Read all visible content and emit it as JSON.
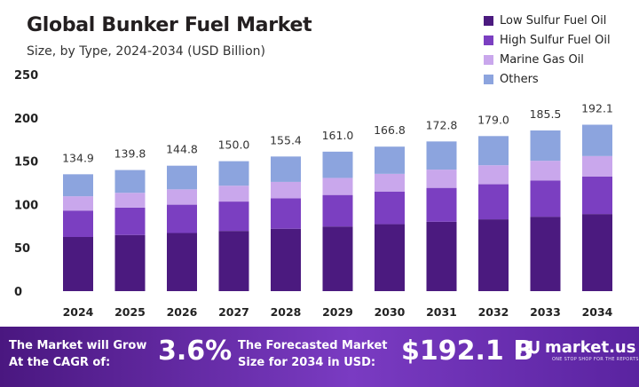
{
  "header": {
    "title": "Global Bunker Fuel Market",
    "subtitle": "Size, by Type, 2024-2034 (USD Billion)"
  },
  "chart_data": {
    "type": "bar",
    "stacked": true,
    "title": "Global Bunker Fuel Market",
    "subtitle": "Size, by Type, 2024-2034 (USD Billion)",
    "categories": [
      "2024",
      "2025",
      "2026",
      "2027",
      "2028",
      "2029",
      "2030",
      "2031",
      "2032",
      "2033",
      "2034"
    ],
    "totals": [
      "134.9",
      "139.8",
      "144.8",
      "150.0",
      "155.4",
      "161.0",
      "166.8",
      "172.8",
      "179.0",
      "185.5",
      "192.1"
    ],
    "series": [
      {
        "name": "Low Sulfur Fuel Oil",
        "color": "#4b1a7f",
        "values": [
          62.5,
          64.8,
          67.1,
          69.5,
          72.0,
          74.6,
          77.3,
          80.1,
          82.9,
          85.9,
          89.0
        ]
      },
      {
        "name": "High Sulfur Fuel Oil",
        "color": "#7b3fc1",
        "values": [
          30.5,
          31.6,
          32.7,
          33.9,
          35.1,
          36.4,
          37.7,
          39.1,
          40.5,
          41.9,
          43.4
        ]
      },
      {
        "name": "Marine Gas Oil",
        "color": "#c9a7ec",
        "values": [
          16.5,
          17.1,
          17.7,
          18.3,
          19.0,
          19.7,
          20.4,
          21.1,
          21.9,
          22.7,
          23.5
        ]
      },
      {
        "name": "Others",
        "color": "#8ca4de",
        "values": [
          25.4,
          26.3,
          27.3,
          28.3,
          29.3,
          30.3,
          31.4,
          32.5,
          33.7,
          35.0,
          36.2
        ]
      }
    ],
    "yticks": [
      "0",
      "50",
      "100",
      "150",
      "200",
      "250"
    ],
    "ylim": [
      0,
      250
    ],
    "grid": false,
    "legend": "top-right"
  },
  "footer": {
    "grow_text": "The Market will Grow At the CAGR of:",
    "cagr": "3.6%",
    "forecast_text": "The Forecasted Market Size for 2034 in USD:",
    "value": "$192.1 B",
    "brand": "market.us",
    "tagline": "ONE STOP SHOP FOR THE REPORTS"
  }
}
